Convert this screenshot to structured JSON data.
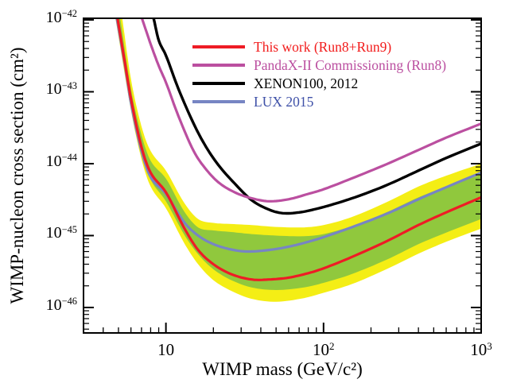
{
  "chart_data": {
    "type": "line",
    "title": "",
    "xlabel": "WIMP mass (GeV/c²)",
    "ylabel": "WIMP-nucleon cross section (cm²)",
    "x_scale": "log",
    "y_scale": "log",
    "xlim": [
      3.0,
      1000
    ],
    "ylim": [
      4.4e-47,
      1.05e-42
    ],
    "grid": false,
    "x_ticks": [
      {
        "value": 10,
        "mantissa": "10",
        "exponent": ""
      },
      {
        "value": 100,
        "mantissa": "10",
        "exponent": "2"
      },
      {
        "value": 1000,
        "mantissa": "10",
        "exponent": "3"
      }
    ],
    "y_ticks": [
      {
        "value": 1e-42,
        "mantissa": "10",
        "exponent": "-42"
      },
      {
        "value": 1e-43,
        "mantissa": "10",
        "exponent": "-43"
      },
      {
        "value": 1e-44,
        "mantissa": "10",
        "exponent": "-44"
      },
      {
        "value": 1e-45,
        "mantissa": "10",
        "exponent": "-45"
      },
      {
        "value": 1e-46,
        "mantissa": "10",
        "exponent": "-46"
      }
    ],
    "bands": [
      {
        "name": "outer-band-yellow",
        "color": "#f4ee15",
        "upper": {
          "m": [
            5.3,
            6,
            7,
            8,
            10,
            13,
            16,
            20,
            26,
            35,
            50,
            75,
            100,
            150,
            250,
            400,
            600,
            1000
          ],
          "sigma": [
            1e-42,
            1.5e-43,
            3.3e-44,
            1.5e-44,
            8e-45,
            2.9e-45,
            1.7e-45,
            1.5e-45,
            1.45e-45,
            1.4e-45,
            1.32e-45,
            1.3e-45,
            1.4e-45,
            1.8e-45,
            2.9e-45,
            4.8e-45,
            6.8e-45,
            1e-44
          ]
        },
        "lower": {
          "m": [
            4.8,
            6,
            7,
            8,
            10,
            13,
            16,
            20,
            26,
            35,
            50,
            75,
            100,
            150,
            250,
            400,
            600,
            1000
          ],
          "sigma": [
            1e-42,
            5.5e-44,
            1.15e-44,
            4.8e-45,
            2.4e-45,
            8e-46,
            4e-46,
            2.4e-46,
            1.7e-46,
            1.32e-46,
            1.2e-46,
            1.35e-46,
            1.6e-46,
            2.1e-46,
            3.4e-46,
            5.6e-46,
            8.2e-46,
            1.25e-45
          ]
        }
      },
      {
        "name": "inner-band-green",
        "color": "#90c83d",
        "upper": {
          "m": [
            5.15,
            6,
            7,
            8,
            10,
            13,
            16,
            20,
            26,
            35,
            50,
            75,
            100,
            150,
            250,
            400,
            600,
            1000
          ],
          "sigma": [
            1e-42,
            1.1e-43,
            2.5e-44,
            1.1e-44,
            6.2e-45,
            2.2e-45,
            1.3e-45,
            1.18e-45,
            1.12e-45,
            1.05e-45,
            1e-45,
            9.8e-46,
            1.05e-45,
            1.35e-45,
            2.1e-45,
            3.4e-45,
            4.8e-45,
            7e-45
          ]
        },
        "lower": {
          "m": [
            4.85,
            6,
            7,
            8,
            10,
            13,
            16,
            20,
            26,
            35,
            50,
            75,
            100,
            150,
            250,
            400,
            600,
            1000
          ],
          "sigma": [
            1e-42,
            6.5e-44,
            1.4e-44,
            6e-45,
            3e-45,
            1.05e-45,
            5.5e-46,
            3.4e-46,
            2.4e-46,
            1.9e-46,
            1.75e-46,
            1.9e-46,
            2.2e-46,
            2.9e-46,
            4.6e-46,
            7.6e-46,
            1.1e-45,
            1.7e-45
          ]
        }
      }
    ],
    "series": [
      {
        "name": "LUX 2015",
        "color": "#7785c3",
        "width": 3.2,
        "m": [
          4.9,
          5.5,
          6,
          7,
          8,
          10,
          13,
          16,
          20,
          26,
          33,
          45,
          60,
          80,
          100,
          150,
          250,
          400,
          600,
          1000
        ],
        "sigma": [
          1e-42,
          2.3e-43,
          7e-44,
          1.5e-44,
          6.5e-45,
          3.8e-45,
          1.55e-45,
          1e-45,
          7.6e-46,
          6.4e-46,
          6e-46,
          6.3e-46,
          7e-46,
          8.2e-46,
          9.5e-46,
          1.3e-45,
          2e-45,
          3.2e-45,
          4.7e-45,
          7.5e-45
        ]
      },
      {
        "name": "This work (Run8+Run9)",
        "color": "#ee1c25",
        "width": 3.2,
        "m": [
          4.95,
          5.5,
          6,
          7,
          8,
          10,
          13,
          16,
          20,
          26,
          35,
          45,
          60,
          80,
          100,
          150,
          250,
          400,
          600,
          1000
        ],
        "sigma": [
          1e-42,
          2.5e-43,
          8e-44,
          1.7e-44,
          7.5e-45,
          4e-45,
          1.3e-45,
          6.3e-46,
          4e-46,
          2.9e-46,
          2.45e-46,
          2.45e-46,
          2.6e-46,
          3e-46,
          3.5e-46,
          5e-46,
          8.3e-46,
          1.4e-45,
          2.1e-45,
          3.4e-45
        ]
      },
      {
        "name": "XENON100, 2012",
        "color": "#000000",
        "width": 3.4,
        "m": [
          8.4,
          9,
          10,
          12,
          15,
          18,
          22,
          28,
          35,
          45,
          55,
          70,
          90,
          120,
          170,
          250,
          400,
          600,
          1000
        ],
        "sigma": [
          1e-42,
          5.2e-43,
          3.2e-43,
          1.1e-43,
          3.6e-44,
          1.7e-44,
          9e-45,
          5e-45,
          3.1e-45,
          2.3e-45,
          2.05e-45,
          2.1e-45,
          2.35e-45,
          2.8e-45,
          3.6e-45,
          5e-45,
          8e-45,
          1.2e-44,
          1.9e-44
        ]
      },
      {
        "name": "PandaX-II Commissioning (Run8)",
        "color": "#bb4fa0",
        "width": 3.2,
        "m": [
          7.1,
          8,
          9,
          10,
          12,
          15,
          18,
          22,
          28,
          35,
          45,
          60,
          80,
          100,
          150,
          250,
          400,
          600,
          1000
        ],
        "sigma": [
          1e-42,
          4.6e-43,
          2.3e-43,
          1.35e-43,
          4.6e-44,
          1.5e-44,
          8.3e-45,
          5.3e-45,
          3.9e-45,
          3.3e-45,
          3e-45,
          3.2e-45,
          3.8e-45,
          4.4e-45,
          6.2e-45,
          9.8e-45,
          1.55e-44,
          2.3e-44,
          3.6e-44
        ]
      }
    ],
    "legend": {
      "position": "top-right",
      "entries": [
        {
          "label": "This work (Run8+Run9)",
          "line_color": "#ee1c25",
          "text_color": "#f21b1b"
        },
        {
          "label": "PandaX-II Commissioning (Run8)",
          "line_color": "#bb4fa0",
          "text_color": "#bb4fa0"
        },
        {
          "label": "XENON100, 2012",
          "line_color": "#000000",
          "text_color": "#000000"
        },
        {
          "label": "LUX 2015",
          "line_color": "#7785c3",
          "text_color": "#3f51a8"
        }
      ]
    }
  }
}
